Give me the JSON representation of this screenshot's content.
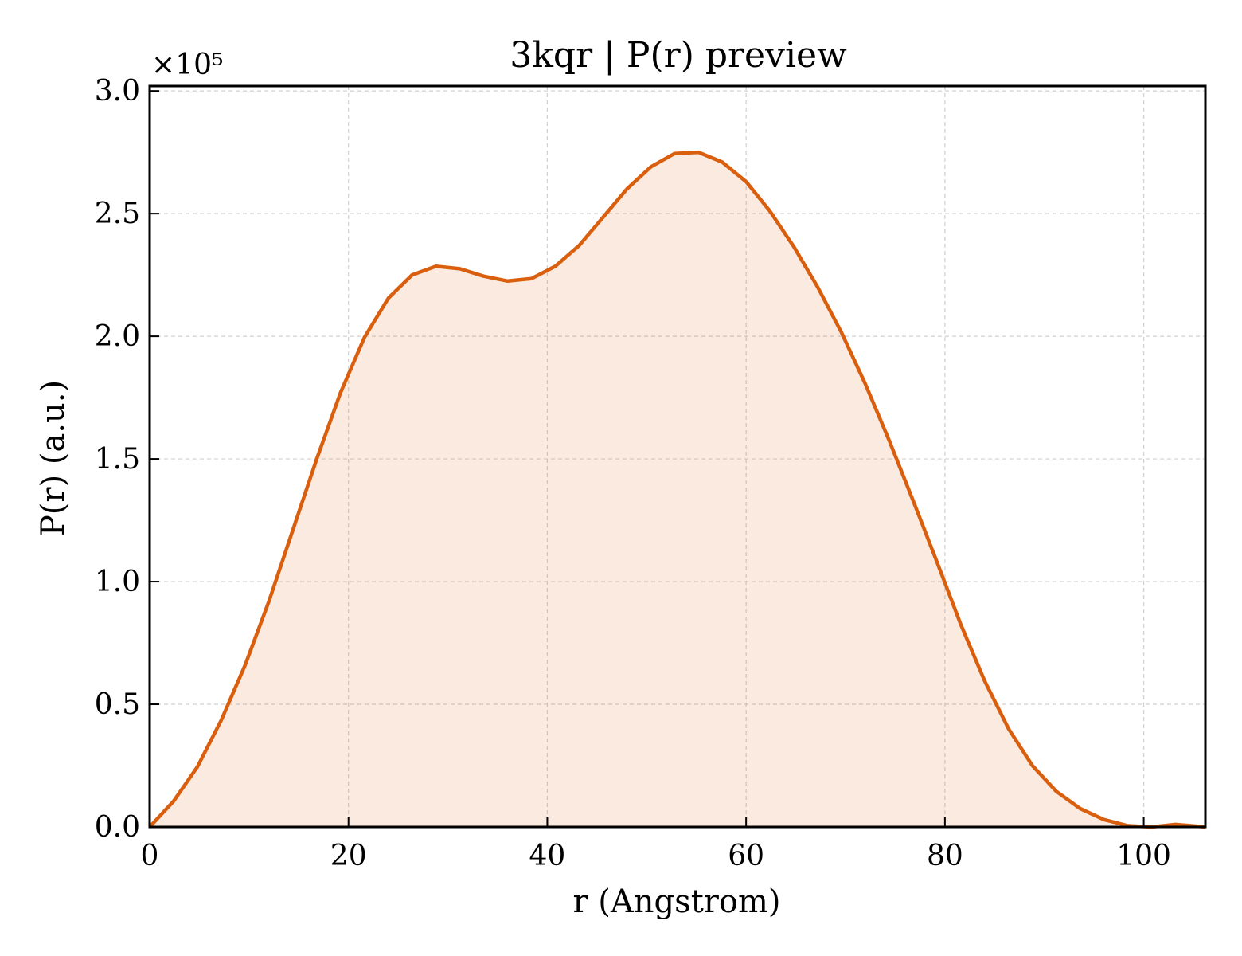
{
  "chart_data": {
    "type": "area",
    "title": "3kqr | P(r) preview",
    "xlabel": "r (Angstrom)",
    "ylabel": "P(r) (a.u.)",
    "y_multiplier_label": "×10⁵",
    "y_multiplier": 100000,
    "xlim": [
      0,
      106.2
    ],
    "ylim": [
      0,
      302000
    ],
    "xticks": [
      0,
      20,
      40,
      60,
      80,
      100
    ],
    "yticks": [
      0,
      50000,
      100000,
      150000,
      200000,
      250000,
      300000
    ],
    "xtick_labels": [
      "0",
      "20",
      "40",
      "60",
      "80",
      "100"
    ],
    "ytick_labels": [
      "0.0",
      "0.5",
      "1.0",
      "1.5",
      "2.0",
      "2.5",
      "3.0"
    ],
    "grid": true,
    "legend": "none",
    "line_color": "#d95f0e",
    "fill_color": "#d95f0e",
    "fill_opacity": 0.13,
    "series": [
      {
        "x": [
          0,
          2.4,
          4.8,
          7.2,
          9.6,
          12.0,
          14.4,
          16.8,
          19.2,
          21.6,
          24.0,
          26.4,
          28.8,
          31.2,
          33.6,
          36.0,
          38.4,
          40.8,
          43.2,
          45.6,
          48.0,
          50.4,
          52.8,
          55.2,
          57.6,
          60.0,
          62.4,
          64.8,
          67.2,
          69.6,
          72.0,
          74.4,
          76.8,
          79.2,
          81.6,
          84.0,
          86.4,
          88.8,
          91.2,
          93.6,
          96.0,
          98.4,
          100.8,
          103.2,
          106.2
        ],
        "values": [
          0,
          10500,
          24500,
          43500,
          66000,
          92000,
          121000,
          150000,
          177000,
          199500,
          215500,
          225000,
          228500,
          227500,
          224500,
          222500,
          223500,
          228500,
          237000,
          248500,
          260000,
          269000,
          274500,
          275000,
          271000,
          263000,
          251000,
          236500,
          220000,
          201500,
          180500,
          157500,
          133000,
          108000,
          82500,
          59500,
          40000,
          25000,
          14500,
          7500,
          3000,
          500,
          0,
          1000,
          0
        ]
      }
    ]
  }
}
